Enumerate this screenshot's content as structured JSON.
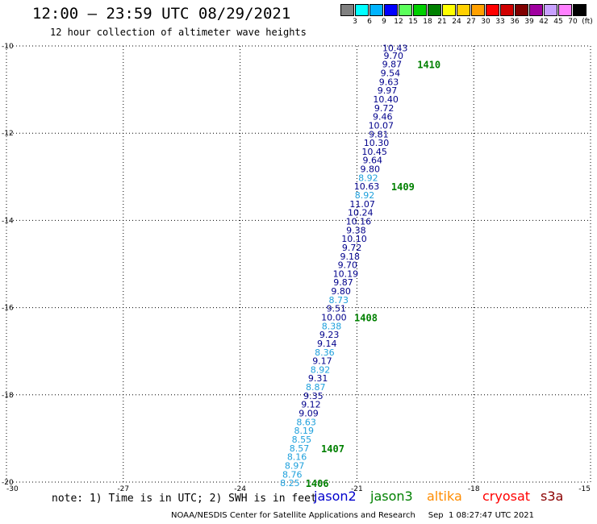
{
  "header": {
    "title": "12:00 – 23:59 UTC 08/29/2021",
    "subtitle": "12 hour collection of altimeter wave heights"
  },
  "colorbar": {
    "labels": [
      "3",
      "6",
      "9",
      "12",
      "15",
      "18",
      "21",
      "24",
      "27",
      "30",
      "33",
      "36",
      "39",
      "42",
      "45",
      "70",
      "(ft)"
    ],
    "colors": [
      "#808080",
      "#00ffff",
      "#00b4ff",
      "#0000ff",
      "#5cff5c",
      "#00d000",
      "#008000",
      "#ffff00",
      "#ffd000",
      "#ffa000",
      "#ff0000",
      "#d00000",
      "#800000",
      "#a000a0",
      "#c8a0ff",
      "#ff80ff",
      "#000000"
    ]
  },
  "note": "note: 1) Time is in UTC; 2) SWH is in feet",
  "legend": [
    {
      "name": "jason2",
      "color": "#0000cd"
    },
    {
      "name": "jason3",
      "color": "#008000"
    },
    {
      "name": "altika",
      "color": "#ff8c00"
    },
    {
      "name": "cryosat",
      "color": "#ff0000"
    },
    {
      "name": "s3a",
      "color": "#8b0000"
    }
  ],
  "footer": "NOAA/NESDIS Center for Satellite Applications and Research     Sep  1 08:27:47 UTC 2021",
  "chart_data": {
    "type": "scatter",
    "x_axis": {
      "ticks": [
        "-30",
        "-27",
        "-24",
        "-21",
        "-18",
        "-15"
      ],
      "range": [
        -30,
        -15
      ]
    },
    "y_axis": {
      "ticks": [
        "-10",
        "-12",
        "-14",
        "-16",
        "-18",
        "-20"
      ],
      "range": [
        -20,
        -10
      ]
    },
    "grid": true,
    "colors": {
      "jason3": "#008000",
      "dark": "#00008b",
      "light": "#1ea0dc"
    },
    "points": [
      {
        "x": -20.02,
        "y": -10.05,
        "label": "10.43",
        "style": "dark"
      },
      {
        "x": -20.06,
        "y": -10.22,
        "label": "9.70",
        "style": "dark"
      },
      {
        "x": -20.1,
        "y": -10.42,
        "label": "9.87",
        "style": "dark"
      },
      {
        "x": -20.14,
        "y": -10.62,
        "label": "9.54",
        "style": "dark"
      },
      {
        "x": -20.18,
        "y": -10.82,
        "label": "9.63",
        "style": "dark"
      },
      {
        "x": -20.22,
        "y": -11.02,
        "label": "9.97",
        "style": "dark"
      },
      {
        "x": -20.26,
        "y": -11.22,
        "label": "10.40",
        "style": "dark"
      },
      {
        "x": -20.3,
        "y": -11.42,
        "label": "9.72",
        "style": "dark"
      },
      {
        "x": -20.34,
        "y": -11.62,
        "label": "9.46",
        "style": "dark"
      },
      {
        "x": -20.38,
        "y": -11.82,
        "label": "10.07",
        "style": "dark"
      },
      {
        "x": -20.44,
        "y": -12.02,
        "label": "9.81",
        "style": "dark"
      },
      {
        "x": -20.5,
        "y": -12.22,
        "label": "10.30",
        "style": "dark"
      },
      {
        "x": -20.55,
        "y": -12.42,
        "label": "10.45",
        "style": "dark"
      },
      {
        "x": -20.6,
        "y": -12.62,
        "label": "9.64",
        "style": "dark"
      },
      {
        "x": -20.66,
        "y": -12.82,
        "label": "9.80",
        "style": "dark"
      },
      {
        "x": -20.71,
        "y": -13.02,
        "label": "8.92",
        "style": "light"
      },
      {
        "x": -20.75,
        "y": -13.22,
        "label": "10.63",
        "style": "dark"
      },
      {
        "x": -20.8,
        "y": -13.42,
        "label": "8.92",
        "style": "light"
      },
      {
        "x": -20.86,
        "y": -13.62,
        "label": "11.07",
        "style": "dark"
      },
      {
        "x": -20.91,
        "y": -13.82,
        "label": "10.24",
        "style": "dark"
      },
      {
        "x": -20.96,
        "y": -14.02,
        "label": "10.16",
        "style": "dark"
      },
      {
        "x": -21.02,
        "y": -14.22,
        "label": "9.38",
        "style": "dark"
      },
      {
        "x": -21.07,
        "y": -14.42,
        "label": "10.10",
        "style": "dark"
      },
      {
        "x": -21.13,
        "y": -14.62,
        "label": "9.72",
        "style": "dark"
      },
      {
        "x": -21.18,
        "y": -14.82,
        "label": "9.18",
        "style": "dark"
      },
      {
        "x": -21.24,
        "y": -15.02,
        "label": "9.70",
        "style": "dark"
      },
      {
        "x": -21.29,
        "y": -15.22,
        "label": "10.19",
        "style": "dark"
      },
      {
        "x": -21.35,
        "y": -15.42,
        "label": "9.87",
        "style": "dark"
      },
      {
        "x": -21.41,
        "y": -15.62,
        "label": "9.80",
        "style": "dark"
      },
      {
        "x": -21.47,
        "y": -15.82,
        "label": "8.73",
        "style": "light"
      },
      {
        "x": -21.53,
        "y": -16.02,
        "label": "9.51",
        "style": "dark"
      },
      {
        "x": -21.59,
        "y": -16.22,
        "label": "10.00",
        "style": "dark"
      },
      {
        "x": -21.65,
        "y": -16.42,
        "label": "8.38",
        "style": "light"
      },
      {
        "x": -21.71,
        "y": -16.62,
        "label": "9.23",
        "style": "dark"
      },
      {
        "x": -21.77,
        "y": -16.82,
        "label": "9.14",
        "style": "dark"
      },
      {
        "x": -21.83,
        "y": -17.02,
        "label": "8.36",
        "style": "light"
      },
      {
        "x": -21.89,
        "y": -17.22,
        "label": "9.17",
        "style": "dark"
      },
      {
        "x": -21.94,
        "y": -17.42,
        "label": "8.92",
        "style": "light"
      },
      {
        "x": -22.0,
        "y": -17.62,
        "label": "9.31",
        "style": "dark"
      },
      {
        "x": -22.06,
        "y": -17.82,
        "label": "8.87",
        "style": "light"
      },
      {
        "x": -22.12,
        "y": -18.02,
        "label": "9.35",
        "style": "dark"
      },
      {
        "x": -22.18,
        "y": -18.22,
        "label": "9.12",
        "style": "dark"
      },
      {
        "x": -22.24,
        "y": -18.42,
        "label": "9.09",
        "style": "dark"
      },
      {
        "x": -22.3,
        "y": -18.62,
        "label": "8.63",
        "style": "light"
      },
      {
        "x": -22.36,
        "y": -18.82,
        "label": "8.19",
        "style": "light"
      },
      {
        "x": -22.42,
        "y": -19.02,
        "label": "8.55",
        "style": "light"
      },
      {
        "x": -22.48,
        "y": -19.22,
        "label": "8.57",
        "style": "light"
      },
      {
        "x": -22.54,
        "y": -19.42,
        "label": "8.16",
        "style": "light"
      },
      {
        "x": -22.6,
        "y": -19.62,
        "label": "8.97",
        "style": "light"
      },
      {
        "x": -22.66,
        "y": -19.82,
        "label": "8.76",
        "style": "light"
      },
      {
        "x": -22.72,
        "y": -20.02,
        "label": "8.25",
        "style": "light"
      }
    ],
    "pass_labels": [
      {
        "x": -19.15,
        "y": -10.42,
        "label": "1410"
      },
      {
        "x": -19.82,
        "y": -13.22,
        "label": "1409"
      },
      {
        "x": -20.77,
        "y": -16.22,
        "label": "1408"
      },
      {
        "x": -21.62,
        "y": -19.22,
        "label": "1407"
      },
      {
        "x": -22.02,
        "y": -20.02,
        "label": "1406"
      }
    ]
  }
}
